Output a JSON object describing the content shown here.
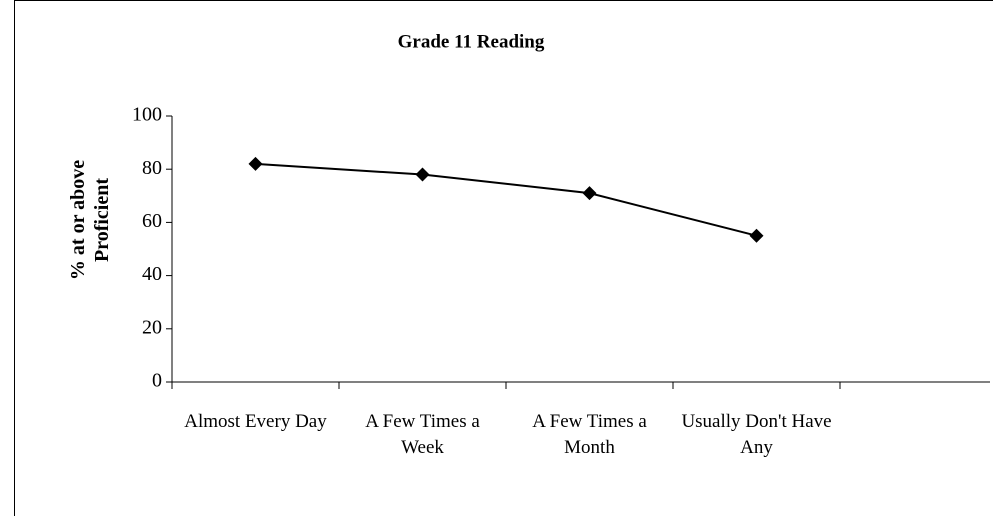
{
  "chart_data": {
    "type": "line",
    "title": "Grade 11 Reading",
    "ylabel": "% at or above Proficient",
    "categories": [
      "Almost Every Day",
      "A Few Times a Week",
      "A Few Times a Month",
      "Usually Don't Have Any",
      null
    ],
    "series": [
      {
        "name": "Grade 11 Reading",
        "color": "#000000",
        "values": [
          82,
          78,
          71,
          55,
          null
        ]
      }
    ],
    "ylim": [
      0,
      100
    ],
    "yticks": [
      0,
      20,
      40,
      60,
      80,
      100
    ],
    "grid": false
  }
}
